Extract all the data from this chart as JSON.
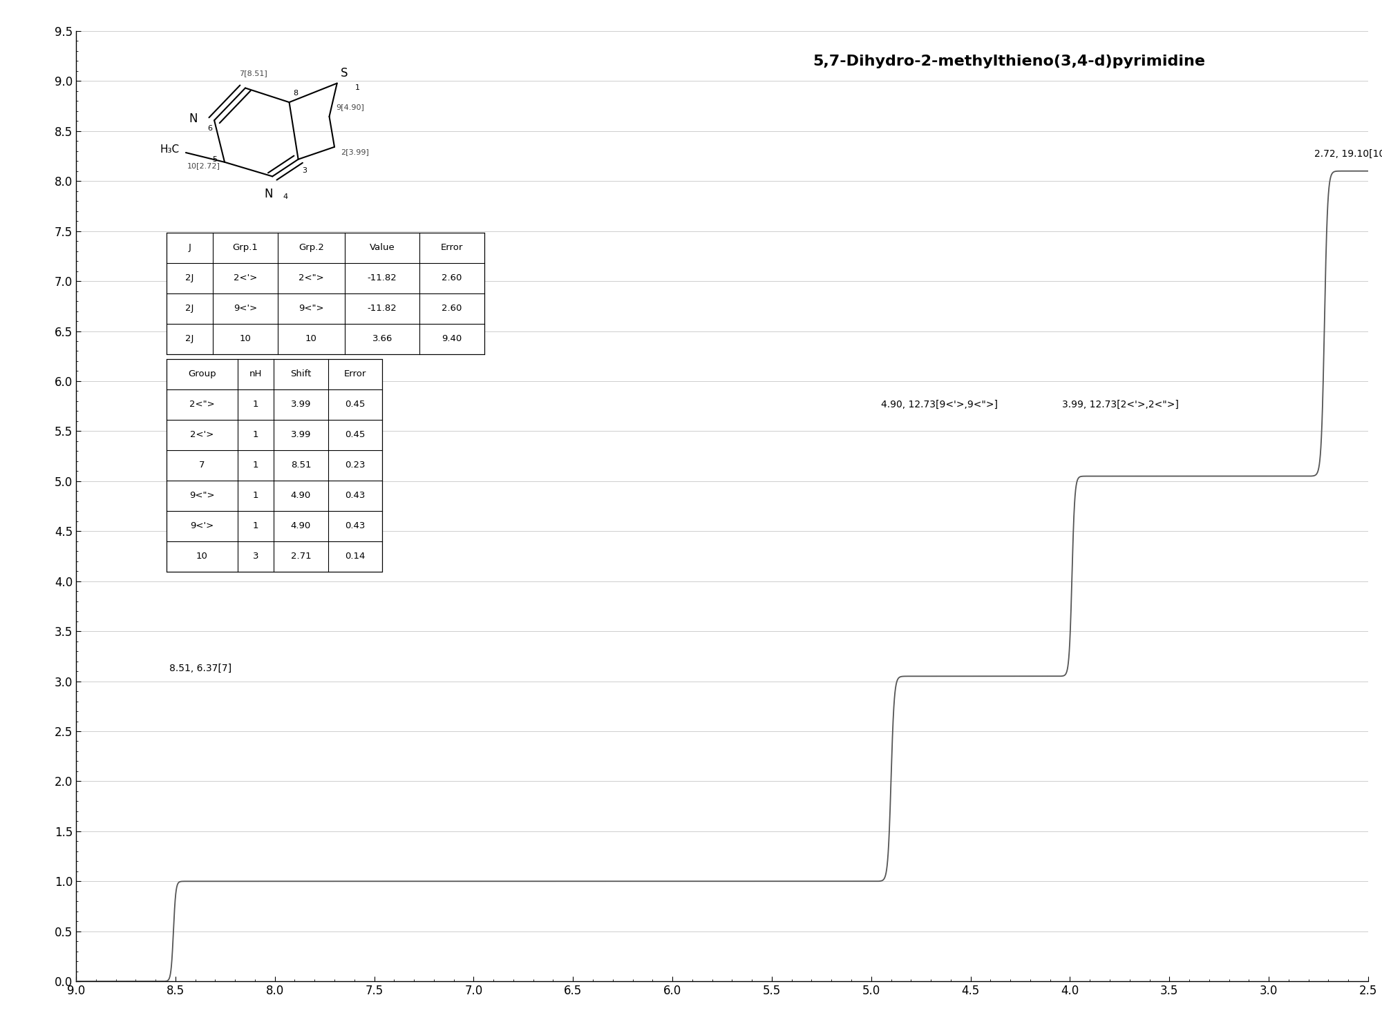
{
  "title": "5,7-Dihydro-2-methylthieno(3,4-d)pyrimidine",
  "background_color": "#ffffff",
  "spectrum_line_color": "#555555",
  "xmin": 9.0,
  "xmax": 2.5,
  "ymin": 0.0,
  "ymax": 9.5,
  "xlabel_ticks": [
    9.0,
    8.5,
    8.0,
    7.5,
    7.0,
    6.5,
    6.0,
    5.5,
    5.0,
    4.5,
    4.0,
    3.5,
    3.0,
    2.5
  ],
  "ylabel_ticks": [
    0.0,
    0.5,
    1.0,
    1.5,
    2.0,
    2.5,
    3.0,
    3.5,
    4.0,
    4.5,
    5.0,
    5.5,
    6.0,
    6.5,
    7.0,
    7.5,
    8.0,
    8.5,
    9.0,
    9.5
  ],
  "j_table": {
    "headers": [
      "J",
      "Grp.1",
      "Grp.2",
      "Value",
      "Error"
    ],
    "rows": [
      [
        "2J",
        "2<'>",
        "2<\">",
        "-11.82",
        "2.60"
      ],
      [
        "2J",
        "9<'>",
        "9<\">",
        "-11.82",
        "2.60"
      ],
      [
        "2J",
        "10",
        "10",
        "3.66",
        "9.40"
      ]
    ]
  },
  "group_table": {
    "headers": [
      "Group",
      "nH",
      "Shift",
      "Error"
    ],
    "rows": [
      [
        "2<\">",
        "1",
        "3.99",
        "0.45"
      ],
      [
        "2<'>",
        "1",
        "3.99",
        "0.45"
      ],
      [
        "7",
        "1",
        "8.51",
        "0.23"
      ],
      [
        "9<\">",
        "1",
        "4.90",
        "0.43"
      ],
      [
        "9<'>",
        "1",
        "4.90",
        "0.43"
      ],
      [
        "10",
        "3",
        "2.71",
        "0.14"
      ]
    ]
  }
}
